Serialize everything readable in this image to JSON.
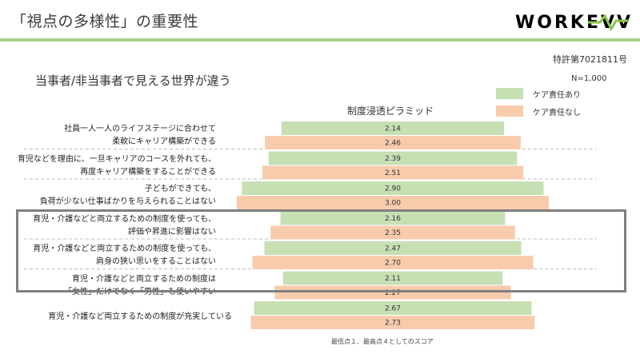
{
  "header": {
    "title": "「視点の多様性」の重要性",
    "logo_text": "WORKEVV"
  },
  "patent_no": "特許第7021811号",
  "subtitle": "当事者/非当事者で見える世界が違う",
  "sample_size": "N=1,000",
  "footnote": "最低点１、最高点４としてのスコア",
  "colors": {
    "accent_green": "#a9d08e",
    "care_yes": "#c6e0b4",
    "care_no": "#f8cbad",
    "separator": "#bfbfbf",
    "highlight_border": "#7f7f7f"
  },
  "chart_data": {
    "type": "bar",
    "orientation": "horizontal-centered",
    "title": "制度浸透ピラミッド",
    "xlim": [
      1,
      4
    ],
    "legend_position": "top-right",
    "series": [
      {
        "name": "ケア責任あり",
        "color": "#c6e0b4",
        "values": [
          2.14,
          2.39,
          2.9,
          2.16,
          2.47,
          2.11,
          2.67
        ]
      },
      {
        "name": "ケア責任なし",
        "color": "#f8cbad",
        "values": [
          2.46,
          2.51,
          3.0,
          2.35,
          2.7,
          2.27,
          2.73
        ]
      }
    ],
    "value_labels_yes": [
      "2.14",
      "2.39",
      "2.90",
      "2.16",
      "2.47",
      "2.11",
      "2.67"
    ],
    "value_labels_no": [
      "2.46",
      "2.51",
      "3.00",
      "2.35",
      "2.70",
      "2.27",
      "2.73"
    ],
    "categories": [
      {
        "line1": "社員一人一人のライフステージに合わせて",
        "line2": "柔軟にキャリア構築ができる"
      },
      {
        "line1": "育児などを理由に、一旦キャリアのコースを外れても、",
        "line2": "再度キャリア構築をすることができる"
      },
      {
        "line1": "子どもができても、",
        "line2": "負荷が少ない仕事ばかりを与えられることはない"
      },
      {
        "line1": "育児・介護などと両立するための制度を使っても、",
        "line2": "評価や昇進に影響はない"
      },
      {
        "line1": "育児・介護などと両立するための制度を使っても、",
        "line2": "肩身の狭い思いをすることはない"
      },
      {
        "line1": "育児・介護などと両立するための制度は",
        "line2": "「女性」だけでなく「男性」も使いやすい"
      },
      {
        "line1": "育児・介護など両立するための制度が充実している",
        "line2": ""
      }
    ],
    "highlighted_rows": [
      3,
      4,
      5
    ]
  }
}
